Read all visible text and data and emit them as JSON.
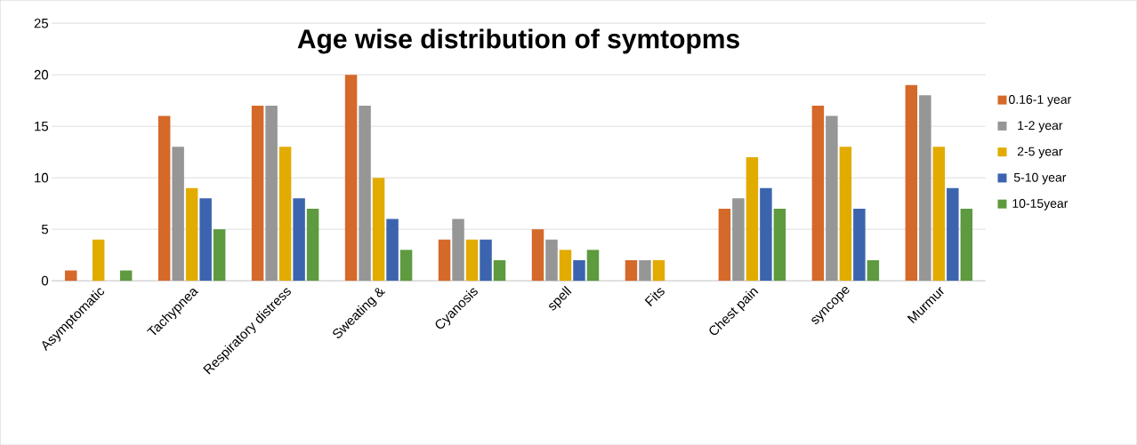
{
  "chart_data": {
    "type": "bar",
    "title": "Age wise distribution of symtopms",
    "categories": [
      "Asymptomatic",
      "Tachypnea",
      "Respiratory distress",
      "Sweating &",
      "Cyanosis",
      "spell",
      "Fits",
      "Chest pain",
      "syncope",
      "Murmur"
    ],
    "series": [
      {
        "name": "0.16-1 year",
        "color": "#d4692a",
        "values": [
          1,
          16,
          17,
          20,
          4,
          5,
          2,
          7,
          17,
          19
        ]
      },
      {
        "name": "1-2    year",
        "color": "#969696",
        "values": [
          null,
          13,
          17,
          17,
          6,
          4,
          2,
          8,
          16,
          18
        ]
      },
      {
        "name": "2-5   year",
        "color": "#e2ab00",
        "values": [
          4,
          9,
          13,
          10,
          4,
          3,
          2,
          12,
          13,
          13
        ]
      },
      {
        "name": "5-10 year",
        "color": "#3c64ae",
        "values": [
          null,
          8,
          8,
          6,
          4,
          2,
          null,
          9,
          7,
          9
        ]
      },
      {
        "name": "10-15year",
        "color": "#5e9a3f",
        "values": [
          1,
          5,
          7,
          3,
          2,
          3,
          null,
          7,
          2,
          7
        ]
      }
    ],
    "ylim": [
      0,
      25
    ],
    "yticks": [
      0,
      5,
      10,
      15,
      20,
      25
    ],
    "grid": "y",
    "legend": "right"
  }
}
